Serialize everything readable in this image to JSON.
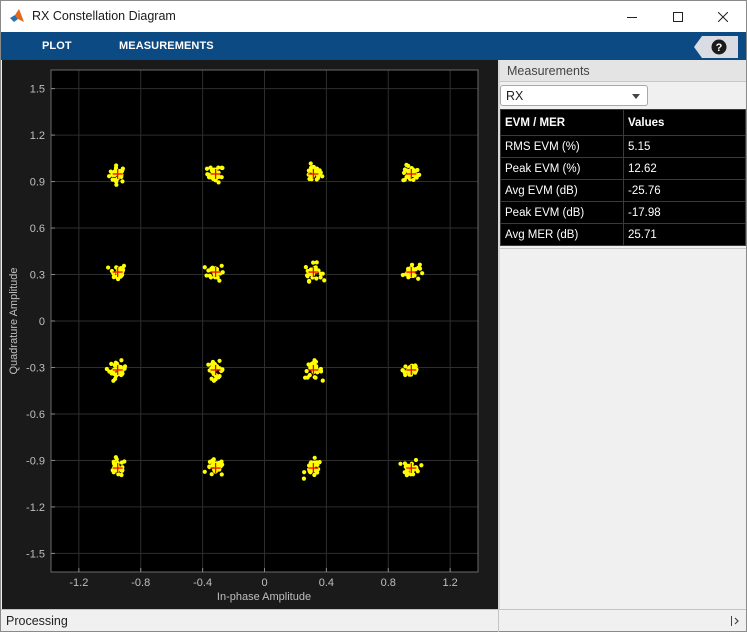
{
  "window": {
    "title": "RX Constellation Diagram",
    "app_icon": "matlab-logo-icon",
    "controls": [
      "minimize-icon",
      "maximize-icon",
      "close-icon"
    ]
  },
  "toolstrip": {
    "tabs": [
      {
        "label": "PLOT"
      },
      {
        "label": "MEASUREMENTS"
      }
    ],
    "help_icon": "help-icon",
    "background": "#0b4a82"
  },
  "plot": {
    "xlabel": "In-phase Amplitude",
    "ylabel": "Quadrature Amplitude",
    "xticks": [
      "-1.2",
      "-0.8",
      "-0.4",
      "0",
      "0.4",
      "0.8",
      "1.2"
    ],
    "yticks": [
      "1.5",
      "1.2",
      "0.9",
      "0.6",
      "0.3",
      "0",
      "-0.3",
      "-0.6",
      "-0.9",
      "-1.2",
      "-1.5"
    ],
    "point_color": "#ffff00",
    "reference_color": "#ff0000"
  },
  "chart_data": {
    "type": "scatter",
    "title": "",
    "xlabel": "In-phase Amplitude",
    "ylabel": "Quadrature Amplitude",
    "xlim": [
      -1.38,
      1.38
    ],
    "ylim": [
      -1.62,
      1.62
    ],
    "grid": true,
    "reference_constellation": [
      [
        -0.949,
        0.949
      ],
      [
        -0.316,
        0.949
      ],
      [
        0.316,
        0.949
      ],
      [
        0.949,
        0.949
      ],
      [
        -0.949,
        0.316
      ],
      [
        -0.316,
        0.316
      ],
      [
        0.316,
        0.316
      ],
      [
        0.949,
        0.316
      ],
      [
        -0.949,
        -0.316
      ],
      [
        -0.316,
        -0.316
      ],
      [
        0.316,
        -0.316
      ],
      [
        0.949,
        -0.316
      ],
      [
        -0.949,
        -0.949
      ],
      [
        -0.316,
        -0.949
      ],
      [
        0.316,
        -0.949
      ],
      [
        0.949,
        -0.949
      ]
    ],
    "spread": 0.049,
    "points_per_symbol": 30
  },
  "measurements": {
    "panel_title": "Measurements",
    "signal": "RX",
    "headers": [
      "EVM / MER",
      "Values"
    ],
    "rows": [
      {
        "label": "RMS EVM (%)",
        "value": "5.15"
      },
      {
        "label": "Peak EVM (%)",
        "value": "12.62"
      },
      {
        "label": "Avg EVM (dB)",
        "value": "-25.76"
      },
      {
        "label": "Peak EVM (dB)",
        "value": "-17.98"
      },
      {
        "label": "Avg MER (dB)",
        "value": "25.71"
      }
    ]
  },
  "status": {
    "text": "Processing",
    "collapse_icon": "collapse-panel-icon"
  }
}
